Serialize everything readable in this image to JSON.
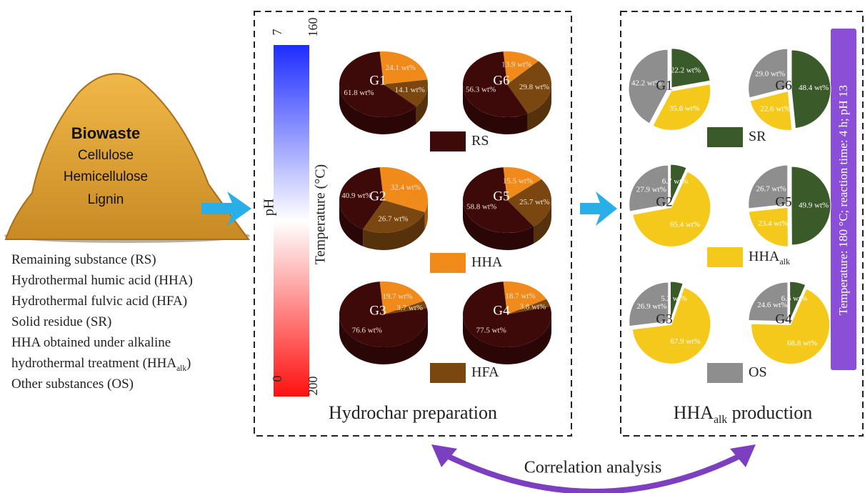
{
  "heap": {
    "title": "Biowaste",
    "components": [
      "Cellulose",
      "Hemicellulose",
      "Lignin"
    ]
  },
  "definitions": [
    {
      "segments": [
        {
          "text": "Remaining substance (RS)"
        }
      ]
    },
    {
      "segments": [
        {
          "text": "Hydrothermal humic acid (HHA)"
        }
      ]
    },
    {
      "segments": [
        {
          "text": "Hydrothermal fulvic acid (HFA)"
        }
      ]
    },
    {
      "segments": [
        {
          "text": "Solid residue (SR)"
        }
      ]
    },
    {
      "segments": [
        {
          "text": "HHA obtained under alkaline"
        }
      ]
    },
    {
      "segments": [
        {
          "text": "hydrothermal treatment (HHA"
        },
        {
          "text": "alk",
          "sub": true
        },
        {
          "text": ")"
        }
      ]
    },
    {
      "segments": [
        {
          "text": "Other substances (OS)"
        }
      ]
    }
  ],
  "colorbar": {
    "left_label": "pH",
    "right_label": "Temperature (°C)",
    "left_ticks": [
      7,
      0
    ],
    "right_ticks": [
      160,
      200
    ]
  },
  "panels": [
    {
      "title": {
        "segments": [
          {
            "text": "Hydrochar preparation"
          }
        ]
      },
      "legend": [
        {
          "label": {
            "segments": [
              {
                "text": "RS"
              }
            ]
          },
          "color": "#3d0909"
        },
        {
          "label": {
            "segments": [
              {
                "text": "HHA"
              }
            ]
          },
          "color": "#f08a1a"
        },
        {
          "label": {
            "segments": [
              {
                "text": "HFA"
              }
            ]
          },
          "color": "#7a4710"
        }
      ],
      "pies": [
        {
          "name": "G1",
          "values": [
            61.8,
            24.1,
            14.1
          ],
          "labels": [
            "61.8 wt%",
            "24.1 wt%",
            "14.1 wt%"
          ]
        },
        {
          "name": "G6",
          "values": [
            56.3,
            13.9,
            29.8
          ],
          "labels": [
            "56.3 wt%",
            "13.9 wt%",
            "29.8 wt%"
          ]
        },
        {
          "name": "G2",
          "values": [
            40.9,
            32.4,
            26.7
          ],
          "labels": [
            "40.9 wt%",
            "32.4 wt%",
            "26.7 wt%"
          ]
        },
        {
          "name": "G5",
          "values": [
            58.8,
            15.5,
            25.7
          ],
          "labels": [
            "58.8 wt%",
            "15.5 wt%",
            "25.7 wt%"
          ]
        },
        {
          "name": "G3",
          "values": [
            76.6,
            19.7,
            3.7
          ],
          "labels": [
            "76.6 wt%",
            "19.7 wt%",
            "3.7 wt%"
          ]
        },
        {
          "name": "G4",
          "values": [
            77.5,
            18.7,
            3.8
          ],
          "labels": [
            "77.5 wt%",
            "18.7 wt%",
            "3.8 wt%"
          ]
        }
      ]
    },
    {
      "title": {
        "segments": [
          {
            "text": "HHA"
          },
          {
            "text": "alk",
            "sub": true
          },
          {
            "text": " production"
          }
        ]
      },
      "note": "Temperature: 180 °C; reaction time: 4 h; pH 13",
      "legend": [
        {
          "label": {
            "segments": [
              {
                "text": "SR"
              }
            ]
          },
          "color": "#3b5a2a"
        },
        {
          "label": {
            "segments": [
              {
                "text": "HHA"
              },
              {
                "text": "alk",
                "sub": true
              }
            ]
          },
          "color": "#f5c91c"
        },
        {
          "label": {
            "segments": [
              {
                "text": "OS"
              }
            ]
          },
          "color": "#8e8e8e"
        }
      ],
      "pies": [
        {
          "name": "G1",
          "values": [
            22.2,
            35.6,
            42.2
          ],
          "labels": [
            "22.2 wt%",
            "35.6 wt%",
            "42.2 wt%"
          ]
        },
        {
          "name": "G6",
          "values": [
            48.4,
            22.6,
            29.0
          ],
          "labels": [
            "48.4 wt%",
            "22.6 wt%",
            "29.0 wt%"
          ]
        },
        {
          "name": "G2",
          "values": [
            6.7,
            65.4,
            27.9
          ],
          "labels": [
            "6.7 wt%",
            "65.4 wt%",
            "27.9 wt%"
          ]
        },
        {
          "name": "G5",
          "values": [
            49.9,
            23.4,
            26.7
          ],
          "labels": [
            "49.9 wt%",
            "23.4 wt%",
            "26.7 wt%"
          ]
        },
        {
          "name": "G3",
          "values": [
            5.2,
            67.9,
            26.9
          ],
          "labels": [
            "5.2 wt%",
            "67.9 wt%",
            "26.9 wt%"
          ]
        },
        {
          "name": "G4",
          "values": [
            6.6,
            68.8,
            24.6
          ],
          "labels": [
            "6.6 wt%",
            "68.8 wt%",
            "24.6 wt%"
          ]
        }
      ]
    }
  ],
  "link": "Correlation analysis"
}
